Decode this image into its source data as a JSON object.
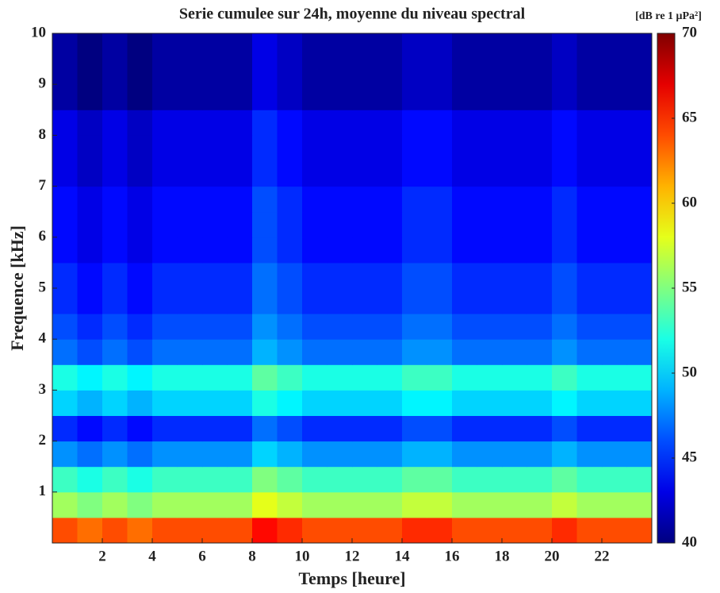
{
  "chart_data": {
    "type": "heatmap",
    "title": "Serie cumulee sur 24h, moyenne du niveau spectral",
    "x_label": "Temps [heure]",
    "y_label": "Frequence [kHz]",
    "colorbar_label": "[dB re 1 μPa²]",
    "colormap": "jet",
    "xlim": [
      0,
      24
    ],
    "xticks": [
      2,
      4,
      6,
      8,
      10,
      12,
      14,
      16,
      18,
      20,
      22
    ],
    "ylim": [
      0,
      10
    ],
    "yticks": [
      1,
      2,
      3,
      4,
      5,
      6,
      7,
      8,
      9,
      10
    ],
    "clim": [
      40,
      70
    ],
    "cticks": [
      40,
      45,
      50,
      55,
      60,
      65,
      70
    ],
    "x": [
      0.5,
      1.5,
      2.5,
      3.5,
      4.5,
      5.5,
      6.5,
      7.5,
      8.5,
      9.5,
      10.5,
      11.5,
      12.5,
      13.5,
      14.5,
      15.5,
      16.5,
      17.5,
      18.5,
      19.5,
      20.5,
      21.5,
      22.5,
      23.5
    ],
    "y": [
      0.25,
      0.75,
      1.25,
      1.75,
      2.25,
      2.75,
      3.25,
      3.75,
      4.25,
      4.75,
      5.25,
      5.75,
      6.25,
      6.75,
      7.25,
      7.75,
      8.25,
      8.75,
      9.25,
      9.75
    ],
    "z": [
      [
        64,
        63,
        64,
        63,
        64,
        64,
        64,
        64,
        66,
        65,
        64,
        64,
        64,
        64,
        65,
        65,
        64,
        64,
        64,
        64,
        65,
        64,
        64,
        64
      ],
      [
        56,
        55,
        56,
        55,
        56,
        56,
        56,
        56,
        58,
        57,
        56,
        56,
        56,
        56,
        57,
        57,
        56,
        56,
        56,
        56,
        57,
        56,
        56,
        56
      ],
      [
        53,
        52,
        53,
        52,
        53,
        53,
        53,
        53,
        55,
        54,
        53,
        53,
        53,
        53,
        54,
        54,
        53,
        53,
        53,
        53,
        54,
        53,
        53,
        53
      ],
      [
        48,
        47,
        48,
        47,
        48,
        48,
        48,
        48,
        50,
        49,
        48,
        48,
        48,
        48,
        49,
        49,
        48,
        48,
        48,
        48,
        49,
        48,
        48,
        48
      ],
      [
        45,
        44,
        45,
        44,
        45,
        45,
        45,
        45,
        47,
        46,
        45,
        45,
        45,
        45,
        46,
        46,
        45,
        45,
        45,
        45,
        46,
        45,
        45,
        45
      ],
      [
        50,
        49,
        50,
        49,
        50,
        50,
        50,
        50,
        52,
        51,
        50,
        50,
        50,
        50,
        51,
        51,
        50,
        50,
        50,
        50,
        51,
        50,
        50,
        50
      ],
      [
        52,
        51,
        52,
        51,
        52,
        52,
        52,
        52,
        54,
        53,
        52,
        52,
        52,
        52,
        53,
        53,
        52,
        52,
        52,
        52,
        53,
        52,
        52,
        52
      ],
      [
        47,
        46,
        47,
        46,
        47,
        47,
        47,
        47,
        49,
        48,
        47,
        47,
        47,
        47,
        48,
        48,
        47,
        47,
        47,
        47,
        48,
        47,
        47,
        47
      ],
      [
        46,
        45,
        46,
        45,
        46,
        46,
        46,
        46,
        48,
        47,
        46,
        46,
        46,
        46,
        47,
        47,
        46,
        46,
        46,
        46,
        47,
        46,
        46,
        46
      ],
      [
        45,
        44,
        45,
        44,
        45,
        45,
        45,
        45,
        47,
        46,
        45,
        45,
        45,
        45,
        46,
        46,
        45,
        45,
        45,
        45,
        46,
        45,
        45,
        45
      ],
      [
        45,
        44,
        45,
        44,
        45,
        45,
        45,
        45,
        47,
        46,
        45,
        45,
        45,
        45,
        46,
        46,
        45,
        45,
        45,
        45,
        46,
        45,
        45,
        45
      ],
      [
        44,
        43,
        44,
        43,
        44,
        44,
        44,
        44,
        46,
        45,
        44,
        44,
        44,
        44,
        45,
        45,
        44,
        44,
        44,
        44,
        45,
        44,
        44,
        44
      ],
      [
        44,
        43,
        44,
        43,
        44,
        44,
        44,
        44,
        46,
        45,
        44,
        44,
        44,
        44,
        45,
        45,
        44,
        44,
        44,
        44,
        45,
        44,
        44,
        44
      ],
      [
        44,
        43,
        44,
        43,
        44,
        44,
        44,
        44,
        46,
        45,
        44,
        44,
        44,
        44,
        45,
        45,
        44,
        44,
        44,
        44,
        45,
        44,
        44,
        44
      ],
      [
        43,
        42,
        43,
        42,
        43,
        43,
        43,
        43,
        45,
        44,
        43,
        43,
        43,
        43,
        44,
        44,
        43,
        43,
        43,
        43,
        44,
        43,
        43,
        43
      ],
      [
        43,
        42,
        43,
        42,
        43,
        43,
        43,
        43,
        45,
        44,
        43,
        43,
        43,
        43,
        44,
        44,
        43,
        43,
        43,
        43,
        44,
        43,
        43,
        43
      ],
      [
        43,
        42,
        43,
        42,
        43,
        43,
        43,
        43,
        45,
        44,
        43,
        43,
        43,
        43,
        44,
        44,
        43,
        43,
        43,
        43,
        44,
        43,
        43,
        43
      ],
      [
        41,
        40,
        41,
        40,
        41,
        41,
        41,
        41,
        43,
        42,
        41,
        41,
        41,
        41,
        42,
        42,
        41,
        41,
        41,
        41,
        42,
        41,
        41,
        41
      ],
      [
        41,
        40,
        41,
        40,
        41,
        41,
        41,
        41,
        43,
        42,
        41,
        41,
        41,
        41,
        42,
        42,
        41,
        41,
        41,
        41,
        42,
        41,
        41,
        41
      ],
      [
        41,
        40,
        41,
        40,
        41,
        41,
        41,
        41,
        43,
        42,
        41,
        41,
        41,
        41,
        42,
        42,
        41,
        41,
        41,
        41,
        42,
        41,
        41,
        41
      ]
    ]
  }
}
